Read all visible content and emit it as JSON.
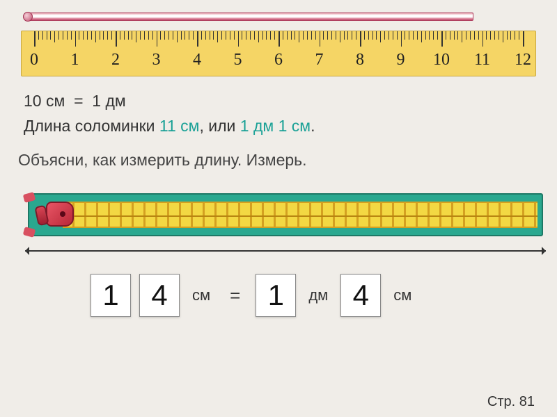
{
  "ruler": {
    "labels": [
      "0",
      "1",
      "2",
      "3",
      "4",
      "5",
      "6",
      "7",
      "8",
      "9",
      "10",
      "11",
      "12"
    ],
    "major_count": 13,
    "minor_per_major": 10,
    "bg_color": "#f5d565"
  },
  "text": {
    "line1_a": "10 см",
    "line1_eq": "=",
    "line1_b": "1 дм",
    "line2_a": "Длина  соломинки",
    "line2_b": "11 см",
    "line2_c": ", или",
    "line2_d": "1 дм 1 см",
    "line2_e": "."
  },
  "task": "Объясни,  как  измерить  длину.  Измерь.",
  "answer": {
    "box1": "1",
    "box2": "4",
    "unit_cm": "см",
    "eq": "=",
    "box3": "1",
    "unit_dm": "дм",
    "box4": "4",
    "unit_cm2": "см"
  },
  "page_ref": "Стр. 81",
  "colors": {
    "teal_text": "#1aa196",
    "zipper_fabric": "#2aa88f",
    "zipper_teeth": "#f3d843",
    "zipper_pull": "#d84555",
    "background": "#f0ede8"
  }
}
